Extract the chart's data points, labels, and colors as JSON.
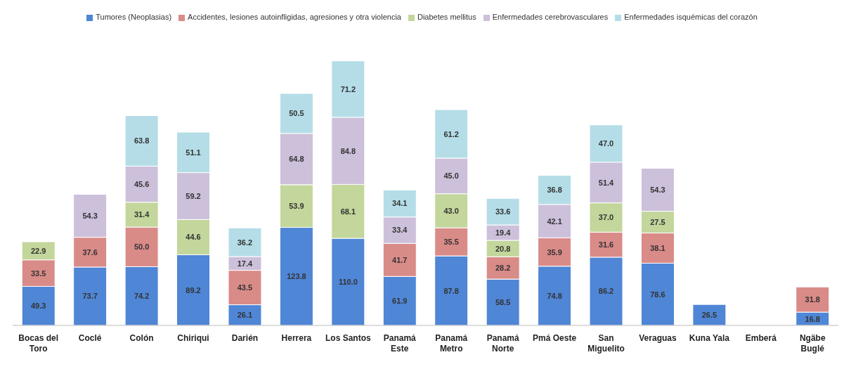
{
  "chart_data": {
    "type": "bar",
    "stacked": true,
    "legend": "top",
    "grid": false,
    "categories": [
      "Bocas del Toro",
      "Coclé",
      "Colón",
      "Chiriqui",
      "Darién",
      "Herrera",
      "Los Santos",
      "Panamá Este",
      "Panamá Metro",
      "Panamá Norte",
      "Pmá Oeste",
      "San Miguelito",
      "Veraguas",
      "Kuna Yala",
      "Emberá",
      "Ngäbe Buglé"
    ],
    "series": [
      {
        "name": "Tumores (Neoplasias)",
        "color": "#4f86d6",
        "values": [
          49.3,
          73.7,
          74.2,
          89.2,
          26.1,
          123.8,
          110.0,
          61.9,
          87.8,
          58.5,
          74.8,
          86.2,
          78.6,
          26.5,
          null,
          16.8
        ],
        "value_labels": [
          "49.3",
          "73.7",
          "74.2",
          "89.2",
          "26.1",
          "123.8",
          "110.0",
          "61.9",
          "87.8",
          "58.5",
          "74.8",
          "86.2",
          "78.6",
          "26.5",
          null,
          "16.8"
        ]
      },
      {
        "name": "Accidentes, lesiones autoinfligidas, agresiones y otra violencia",
        "color": "#d98b88",
        "values": [
          33.5,
          37.6,
          50.0,
          null,
          43.5,
          null,
          null,
          41.7,
          35.5,
          28.2,
          35.9,
          31.6,
          38.1,
          null,
          null,
          31.8
        ],
        "value_labels": [
          "33.5",
          "37.6",
          "50.0",
          null,
          "43.5",
          null,
          null,
          "41.7",
          "35.5",
          "28.2",
          "35.9",
          "31.6",
          "38.1",
          null,
          null,
          "31.8"
        ]
      },
      {
        "name": "Diabetes mellitus",
        "color": "#c3d69b",
        "values": [
          22.9,
          null,
          31.4,
          44.6,
          null,
          53.9,
          68.1,
          null,
          43.0,
          20.8,
          null,
          37.0,
          27.5,
          null,
          null,
          null
        ],
        "value_labels": [
          "22.9",
          null,
          "31.4",
          "44.6",
          null,
          "53.9",
          "68.1",
          null,
          "43.0",
          "20.8",
          null,
          "37.0",
          "27.5",
          null,
          null,
          null
        ]
      },
      {
        "name": "Enfermedades cerebrovasculares",
        "color": "#ccc0da",
        "values": [
          null,
          54.3,
          45.6,
          59.2,
          17.4,
          64.8,
          84.8,
          33.4,
          45.0,
          19.4,
          42.1,
          51.4,
          54.3,
          null,
          null,
          null
        ],
        "value_labels": [
          null,
          "54.3",
          "45.6",
          "59.2",
          "17.4",
          "64.8",
          "84.8",
          "33.4",
          "45.0",
          "19.4",
          "42.1",
          "51.4",
          "54.3",
          null,
          null,
          null
        ]
      },
      {
        "name": "Enfermedades isquémicas del corazón",
        "color": "#b4dde7",
        "values": [
          null,
          null,
          63.8,
          51.1,
          36.2,
          50.5,
          71.2,
          34.1,
          61.2,
          33.6,
          36.8,
          47.0,
          null,
          null,
          null,
          null
        ],
        "value_labels": [
          null,
          null,
          "63.8",
          "51.1",
          "36.2",
          "50.5",
          "71.2",
          "34.1",
          "61.2",
          "33.6",
          "36.8",
          "47.0",
          null,
          null,
          null,
          null
        ]
      }
    ]
  }
}
